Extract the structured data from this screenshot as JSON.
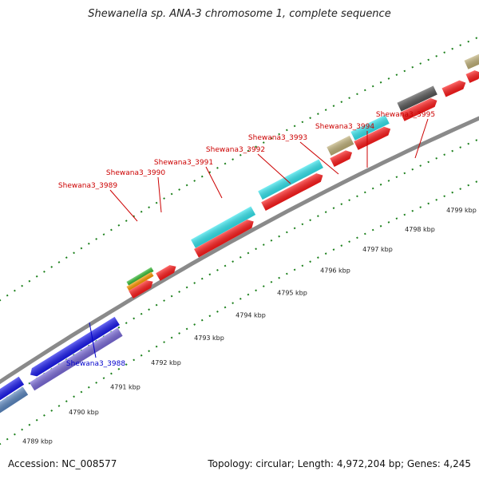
{
  "title": "Shewanella sp. ANA-3 chromosome 1, complete sequence",
  "footer": {
    "accession": "Accession: NC_008577",
    "summary": "Topology: circular; Length: 4,972,204 bp; Genes: 4,245"
  },
  "colors": {
    "backbone": "#8a8a8a",
    "tick": "#1a7f1a",
    "forward_label": "#cc0000",
    "reverse_label": "#0000cc",
    "cds": "#ff1a1a",
    "cyan": "#33e5ee",
    "blue": "#1a1aee",
    "purple": "#7a6ad8",
    "steel": "#5a86c0",
    "khaki": "#bfb078",
    "darkgray": "#555555",
    "green": "#33bb33",
    "orange": "#ff9900"
  },
  "scale_labels": [
    "4789 kbp",
    "4790 kbp",
    "4791 kbp",
    "4792 kbp",
    "4793 kbp",
    "4794 kbp",
    "4795 kbp",
    "4796 kbp",
    "4797 kbp",
    "4798 kbp",
    "4799 kbp"
  ],
  "gene_labels_forward": [
    "Shewana3_3989",
    "Shewana3_3990",
    "Shewana3_3991",
    "Shewana3_3992",
    "Shewana3_3993",
    "Shewana3_3994",
    "Shewana3_3995"
  ],
  "gene_labels_reverse": [
    "Shewana3_3988"
  ]
}
